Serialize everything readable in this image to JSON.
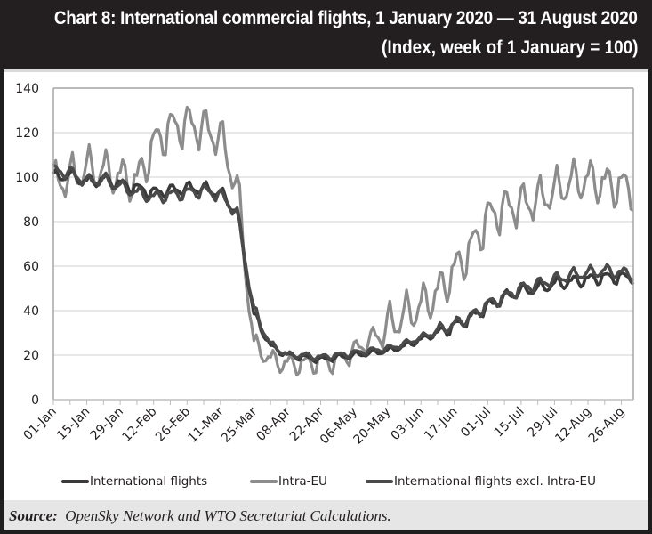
{
  "header": {
    "title": "Chart 8: International commercial flights, 1 January 2020 — 31 August 2020",
    "subtitle": "(Index, week of 1 January = 100)"
  },
  "footer": {
    "source_label": "Source:",
    "source_text": "OpenSky Network and WTO Secretariat Calculations."
  },
  "chart_data": {
    "type": "line",
    "title": "Chart 8: International commercial flights, 1 January 2020 — 31 August 2020",
    "subtitle": "(Index, week of 1 January = 100)",
    "xlabel": "",
    "ylabel": "",
    "ylim": [
      0,
      140
    ],
    "yticks": [
      0,
      20,
      40,
      60,
      80,
      100,
      120,
      140
    ],
    "xtick_labels": [
      "01-Jan",
      "15-Jan",
      "29-Jan",
      "12-Feb",
      "26-Feb",
      "11-Mar",
      "25-Mar",
      "08-Apr",
      "22-Apr",
      "06-May",
      "20-May",
      "03-Jun",
      "17-Jun",
      "01-Jul",
      "15-Jul",
      "29-Jul",
      "12-Aug",
      "26-Aug"
    ],
    "x_range": [
      "2020-01-01",
      "2020-08-31"
    ],
    "grid": true,
    "legend_position": "bottom",
    "series_note": "values are weekly anchor points (every 7 days from 01-Jan); daily lines oscillate around these",
    "x": [
      "01-Jan",
      "08-Jan",
      "15-Jan",
      "22-Jan",
      "29-Jan",
      "05-Feb",
      "12-Feb",
      "19-Feb",
      "26-Feb",
      "04-Mar",
      "11-Mar",
      "18-Mar",
      "25-Mar",
      "01-Apr",
      "08-Apr",
      "15-Apr",
      "22-Apr",
      "29-Apr",
      "06-May",
      "13-May",
      "20-May",
      "27-May",
      "03-Jun",
      "10-Jun",
      "17-Jun",
      "24-Jun",
      "01-Jul",
      "08-Jul",
      "15-Jul",
      "22-Jul",
      "29-Jul",
      "05-Aug",
      "12-Aug",
      "19-Aug",
      "26-Aug",
      "31-Aug"
    ],
    "series": [
      {
        "name": "International flights",
        "color": "#3a3a3a",
        "values": [
          100,
          101,
          98,
          99,
          97,
          95,
          93,
          94,
          95,
          95,
          93,
          84,
          38,
          24,
          20,
          19,
          18,
          19,
          20,
          21,
          22,
          24,
          27,
          30,
          33,
          37,
          42,
          46,
          49,
          50,
          52,
          53,
          54,
          55,
          55,
          55
        ],
        "amplitude": 3
      },
      {
        "name": "Intra-EU",
        "color": "#8c8c8c",
        "values": [
          98,
          100,
          104,
          103,
          100,
          98,
          115,
          122,
          124,
          122,
          118,
          96,
          25,
          18,
          16,
          16,
          17,
          17,
          22,
          27,
          33,
          38,
          42,
          48,
          58,
          68,
          82,
          86,
          88,
          90,
          94,
          98,
          99,
          97,
          96,
          94
        ],
        "amplitude": 10
      },
      {
        "name": "International flights excl. Intra-EU",
        "color": "#4a4a4a",
        "values": [
          103,
          102,
          98,
          99,
          96,
          93,
          91,
          92,
          93,
          94,
          92,
          84,
          40,
          25,
          20,
          20,
          19,
          20,
          21,
          22,
          23,
          25,
          28,
          31,
          34,
          37,
          43,
          46,
          50,
          52,
          54,
          56,
          57,
          58,
          57,
          56
        ],
        "amplitude": 3
      }
    ]
  }
}
